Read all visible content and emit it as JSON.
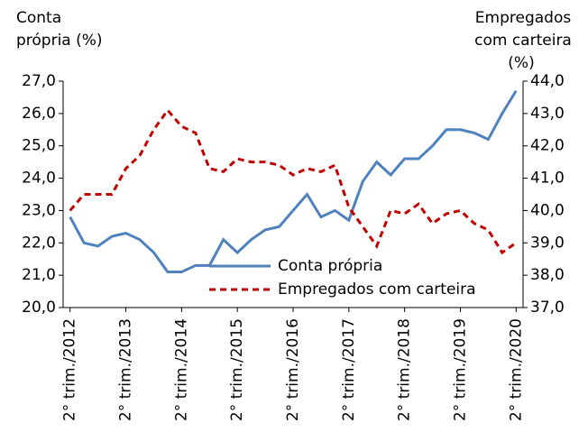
{
  "chart_data": {
    "type": "line",
    "y_label": [
      "Conta",
      "própria (%)"
    ],
    "y2_label": [
      "Empregados",
      "com carteira",
      "(%)"
    ],
    "categories": [
      "2° trim./2012",
      null,
      null,
      null,
      "2° trim./2013",
      null,
      null,
      null,
      "2° trim./2014",
      null,
      null,
      null,
      "2° trim./2015",
      null,
      null,
      null,
      "2° trim./2016",
      null,
      null,
      null,
      "2° trim./2017",
      null,
      null,
      null,
      "2° trim./2018",
      null,
      null,
      null,
      "2° trim./2019",
      null,
      null,
      null,
      "2° trim./2020"
    ],
    "series": [
      {
        "name": "Conta própria",
        "color": "#4f81bd",
        "dash": false,
        "axis": "y",
        "values": [
          22.8,
          22.0,
          21.9,
          22.2,
          22.3,
          22.1,
          21.7,
          21.1,
          21.1,
          21.3,
          21.3,
          22.1,
          21.7,
          22.1,
          22.4,
          22.5,
          23.0,
          23.5,
          22.8,
          23.0,
          22.7,
          23.9,
          24.5,
          24.1,
          24.6,
          24.6,
          25.0,
          25.5,
          25.5,
          25.4,
          25.2,
          26.0,
          26.7
        ]
      },
      {
        "name": "Empregados com carteira",
        "color": "#c00000",
        "dash": true,
        "axis": "y2",
        "values": [
          40.0,
          40.5,
          40.5,
          40.5,
          41.3,
          41.7,
          42.5,
          43.1,
          42.6,
          42.4,
          41.3,
          41.2,
          41.6,
          41.5,
          41.5,
          41.4,
          41.1,
          41.3,
          41.2,
          41.4,
          40.1,
          39.5,
          38.9,
          40.0,
          39.9,
          40.2,
          39.6,
          39.9,
          40.0,
          39.6,
          39.4,
          38.7,
          39.0
        ]
      }
    ],
    "ylim": [
      20,
      27
    ],
    "yticks": [
      {
        "value": 20,
        "label": "20,0"
      },
      {
        "value": 21,
        "label": "21,0"
      },
      {
        "value": 22,
        "label": "22,0"
      },
      {
        "value": 23,
        "label": "23,0"
      },
      {
        "value": 24,
        "label": "24,0"
      },
      {
        "value": 25,
        "label": "25,0"
      },
      {
        "value": 26,
        "label": "26,0"
      },
      {
        "value": 27,
        "label": "27,0"
      }
    ],
    "y2lim": [
      37,
      44
    ],
    "y2ticks": [
      {
        "value": 37,
        "label": "37,0"
      },
      {
        "value": 38,
        "label": "38,0"
      },
      {
        "value": 39,
        "label": "39,0"
      },
      {
        "value": 40,
        "label": "40,0"
      },
      {
        "value": 41,
        "label": "41,0"
      },
      {
        "value": 42,
        "label": "42,0"
      },
      {
        "value": 43,
        "label": "43,0"
      },
      {
        "value": 44,
        "label": "44,0"
      }
    ]
  }
}
